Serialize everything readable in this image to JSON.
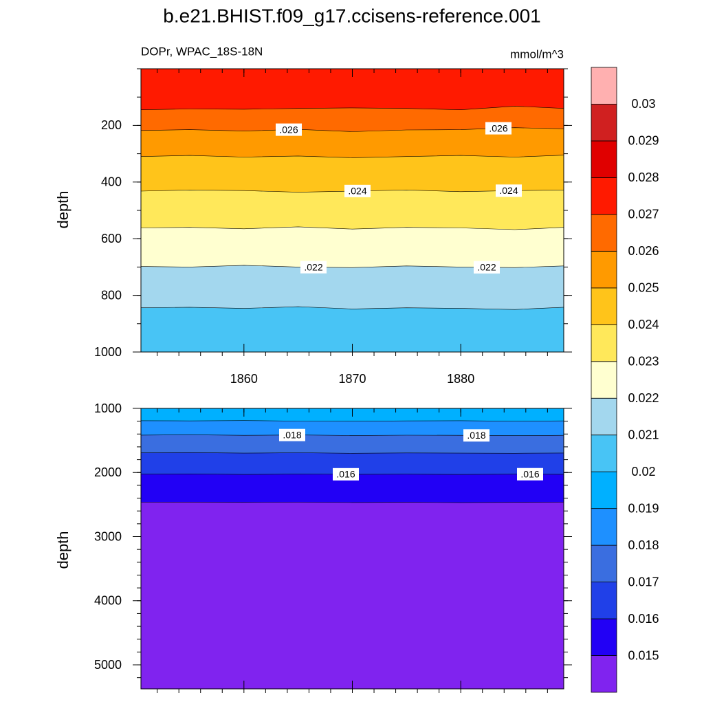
{
  "chart_data": {
    "type": "contour",
    "title": "b.e21.BHIST.f09_g17.ccisens-reference.001",
    "subtitle_left": "DOPr, WPAC_18S-18N",
    "subtitle_right": "mmol/m^3",
    "colorbar": {
      "levels": [
        0.015,
        0.016,
        0.017,
        0.018,
        0.019,
        0.02,
        0.021,
        0.022,
        0.023,
        0.024,
        0.025,
        0.026,
        0.027,
        0.028,
        0.029,
        0.03
      ],
      "colors": [
        "#8023ef",
        "#2200f5",
        "#2040e8",
        "#3a6ee0",
        "#1e90ff",
        "#00b0ff",
        "#48c4f5",
        "#a3d7ee",
        "#ffffd0",
        "#ffe85a",
        "#ffc41a",
        "#ff9a00",
        "#ff6a00",
        "#ff1a00",
        "#e00000",
        "#d02020",
        "#ffb0b0"
      ]
    },
    "panels": [
      {
        "ylabel": "depth",
        "xlim": [
          1850.5,
          1889.5
        ],
        "xticks": [
          1860,
          1870,
          1880
        ],
        "x_minor_step": 2,
        "show_xtick_labels": true,
        "ylim": [
          0,
          1000
        ],
        "yticks": [
          200,
          400,
          600,
          800,
          1000
        ],
        "y_minor_step": 100,
        "x": [
          1850.5,
          1855,
          1860,
          1865,
          1870,
          1875,
          1880,
          1885,
          1889.5
        ],
        "contours": [
          {
            "level": 0.027,
            "depths": [
              145,
              142,
              143,
              140,
              138,
              140,
              145,
              132,
              140
            ]
          },
          {
            "level": 0.026,
            "depths": [
              218,
              215,
              220,
              214,
              222,
              216,
              215,
              208,
              212
            ],
            "label": ".026"
          },
          {
            "level": 0.025,
            "depths": [
              310,
              306,
              312,
              308,
              314,
              310,
              306,
              312,
              305
            ]
          },
          {
            "level": 0.024,
            "depths": [
              432,
              428,
              430,
              436,
              432,
              428,
              434,
              430,
              428
            ],
            "label": ".024"
          },
          {
            "level": 0.023,
            "depths": [
              562,
              560,
              565,
              558,
              566,
              560,
              562,
              568,
              560
            ]
          },
          {
            "level": 0.022,
            "depths": [
              698,
              700,
              694,
              700,
              702,
              696,
              700,
              702,
              696
            ],
            "label": ".022"
          },
          {
            "level": 0.021,
            "depths": [
              844,
              842,
              846,
              840,
              848,
              844,
              846,
              850,
              842
            ]
          }
        ]
      },
      {
        "ylabel": "depth",
        "xlim": [
          1850.5,
          1889.5
        ],
        "xticks": [
          1860,
          1870,
          1880
        ],
        "x_minor_step": 2,
        "show_xtick_labels": false,
        "ylim": [
          1000,
          5375
        ],
        "yticks": [
          1000,
          2000,
          3000,
          4000,
          5000
        ],
        "y_minor_step": 200,
        "x": [
          1850.5,
          1855,
          1860,
          1865,
          1870,
          1875,
          1880,
          1885,
          1889.5
        ],
        "contours": [
          {
            "level": 0.019,
            "depths": [
              1192,
              1195,
              1190,
              1198,
              1200,
              1195,
              1192,
              1200,
              1195
            ]
          },
          {
            "level": 0.018,
            "depths": [
              1417,
              1412,
              1420,
              1415,
              1422,
              1418,
              1420,
              1425,
              1420
            ],
            "label": ".018"
          },
          {
            "level": 0.017,
            "depths": [
              1694,
              1690,
              1698,
              1692,
              1700,
              1695,
              1698,
              1700,
              1696
            ]
          },
          {
            "level": 0.016,
            "depths": [
              2026,
              2022,
              2030,
              2025,
              2028,
              2026,
              2030,
              2026,
              2028
            ],
            "label": ".016"
          },
          {
            "level": 0.015,
            "depths": [
              2464,
              2462,
              2466,
              2464,
              2468,
              2465,
              2470,
              2466,
              2464
            ]
          }
        ]
      }
    ]
  }
}
